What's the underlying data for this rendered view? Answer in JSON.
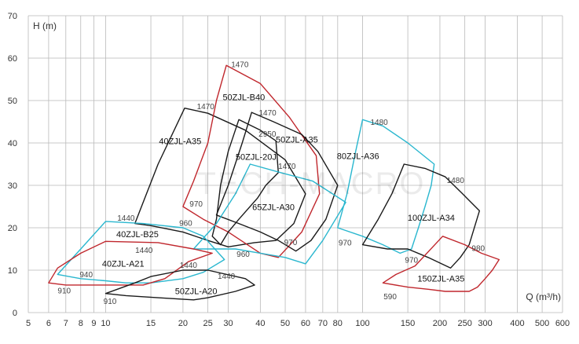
{
  "chart_data": {
    "type": "line",
    "title": "",
    "xlabel": "Q (m³/h)",
    "ylabel": "H (m)",
    "x_scale": "log",
    "xlim": [
      5,
      600
    ],
    "ylim": [
      0,
      70
    ],
    "grid": true,
    "watermark": "TECH-MACRO",
    "x_ticks": [
      5,
      6,
      7,
      8,
      9,
      10,
      15,
      20,
      25,
      30,
      40,
      50,
      60,
      70,
      80,
      100,
      150,
      200,
      250,
      300,
      400,
      500,
      600
    ],
    "y_ticks": [
      0,
      10,
      20,
      30,
      40,
      50,
      60,
      70
    ],
    "x_tick_labels": [
      "5",
      "6",
      "7",
      "8",
      "9",
      "10",
      "15",
      "20",
      "25",
      "30",
      "40",
      "50",
      "60",
      "70",
      "80",
      "100",
      "150",
      "200",
      "250",
      "300",
      "400",
      "500",
      "600"
    ],
    "y_tick_labels": [
      "0",
      "10",
      "20",
      "30",
      "40",
      "50",
      "60",
      "70"
    ],
    "colors": {
      "black": "#1a1a1a",
      "red": "#c0272d",
      "cyan": "#2ab7cf",
      "grid": "#b9b9b9"
    },
    "pumps": [
      {
        "model": "40ZJL-A35",
        "color": "black",
        "label_pos": [
          19.5,
          40.5
        ],
        "outline": [
          [
            13,
            21
          ],
          [
            16,
            35
          ],
          [
            20.3,
            48.2
          ],
          [
            25,
            47
          ],
          [
            35,
            43
          ],
          [
            50,
            36
          ],
          [
            60,
            28
          ],
          [
            54,
            21
          ],
          [
            46,
            17
          ],
          [
            38,
            16.5
          ],
          [
            30,
            15.5
          ],
          [
            25,
            17
          ],
          [
            20,
            19
          ],
          [
            15,
            20.5
          ]
        ],
        "speeds": [
          {
            "text": "1470",
            "pos": [
              24.5,
              48.7
            ]
          },
          {
            "text": "960",
            "pos": [
              20.5,
              21.2
            ]
          }
        ]
      },
      {
        "model": "50ZJL-B40",
        "color": "red",
        "label_pos": [
          34.5,
          50.8
        ],
        "outline": [
          [
            29.5,
            58.3
          ],
          [
            40,
            54
          ],
          [
            52,
            46
          ],
          [
            66,
            37
          ],
          [
            68,
            28
          ],
          [
            58,
            19
          ],
          [
            47,
            13
          ],
          [
            40,
            14
          ],
          [
            30,
            19
          ],
          [
            24,
            22
          ],
          [
            20,
            25
          ],
          [
            22,
            31
          ],
          [
            25,
            40
          ],
          [
            27,
            50
          ]
        ],
        "speeds": [
          {
            "text": "1470",
            "pos": [
              33.3,
              58.6
            ]
          },
          {
            "text": "970",
            "pos": [
              22.5,
              25.7
            ]
          }
        ]
      },
      {
        "model": "50ZJL-A35",
        "color": "black",
        "label_pos": [
          55.5,
          40.8
        ],
        "outline": [
          [
            37,
            47.2
          ],
          [
            45,
            45
          ],
          [
            58,
            42
          ],
          [
            67,
            38
          ],
          [
            80,
            30
          ],
          [
            72,
            22
          ],
          [
            63,
            17
          ],
          [
            55,
            14.5
          ],
          [
            47,
            17
          ],
          [
            40,
            19
          ],
          [
            33,
            21
          ],
          [
            27,
            23
          ],
          [
            30,
            30
          ],
          [
            34,
            40
          ]
        ],
        "speeds": [
          {
            "text": "1470",
            "pos": [
              42.7,
              47.2
            ]
          }
        ]
      },
      {
        "model": "50ZJL-20J",
        "color": "black",
        "label_pos": [
          38.5,
          36.8
        ],
        "outline": [
          [
            33,
            45.5
          ],
          [
            40,
            43
          ],
          [
            46,
            40.5
          ],
          [
            47,
            33
          ],
          [
            42,
            30
          ],
          [
            39,
            27
          ],
          [
            33,
            22
          ],
          [
            30,
            19
          ],
          [
            28,
            16
          ],
          [
            26,
            18
          ],
          [
            27,
            22
          ],
          [
            28,
            30
          ],
          [
            30,
            38
          ]
        ],
        "speeds": [
          {
            "text": "2950",
            "pos": [
              42.6,
              42.2
            ]
          }
        ]
      },
      {
        "model": "65ZJL-A30",
        "color": "cyan",
        "label_pos": [
          45,
          24.9
        ],
        "outline": [
          [
            36.5,
            35
          ],
          [
            48,
            33
          ],
          [
            64,
            31
          ],
          [
            86,
            26
          ],
          [
            70,
            17
          ],
          [
            60,
            11.5
          ],
          [
            50,
            13
          ],
          [
            40,
            14
          ],
          [
            32,
            15
          ],
          [
            22,
            15
          ],
          [
            27,
            21
          ],
          [
            32,
            28
          ]
        ],
        "speeds": [
          {
            "text": "1470",
            "pos": [
              50.8,
              34.6
            ]
          },
          {
            "text": "960",
            "pos": [
              34.3,
              13.9
            ]
          },
          {
            "text": "970",
            "pos": [
              52.5,
              16.7
            ]
          }
        ]
      },
      {
        "model": "40ZJL-B25",
        "color": "cyan",
        "label_pos": [
          13.3,
          18.5
        ],
        "outline": [
          [
            10,
            21.5
          ],
          [
            14,
            21
          ],
          [
            20,
            20
          ],
          [
            24,
            18
          ],
          [
            29,
            12.5
          ],
          [
            24,
            9.5
          ],
          [
            20,
            8
          ],
          [
            15,
            7
          ],
          [
            12,
            7
          ],
          [
            10,
            7.5
          ],
          [
            8,
            8
          ],
          [
            6.5,
            9
          ],
          [
            8,
            15
          ]
        ],
        "speeds": [
          {
            "text": "1440",
            "pos": [
              12,
              22.4
            ]
          }
        ]
      },
      {
        "model": "40ZJL-A21",
        "color": "red",
        "label_pos": [
          11.7,
          11.6
        ],
        "outline": [
          [
            10,
            16.8
          ],
          [
            16,
            16.5
          ],
          [
            22,
            15
          ],
          [
            26,
            14
          ],
          [
            21,
            12
          ],
          [
            17,
            8
          ],
          [
            14,
            6.5
          ],
          [
            10,
            6.5
          ],
          [
            7,
            6.5
          ],
          [
            6,
            7
          ],
          [
            6.5,
            10.5
          ],
          [
            8,
            14
          ]
        ],
        "speeds": [
          {
            "text": "1440",
            "pos": [
              14.1,
              14.8
            ]
          },
          {
            "text": "940",
            "pos": [
              8.4,
              9.1
            ]
          },
          {
            "text": "910",
            "pos": [
              6.9,
              5.3
            ]
          }
        ]
      },
      {
        "model": "50ZJL-A20",
        "color": "black",
        "label_pos": [
          22.5,
          5.1
        ],
        "outline": [
          [
            15,
            8.5
          ],
          [
            20,
            10
          ],
          [
            25,
            10
          ],
          [
            35,
            8
          ],
          [
            38,
            6.5
          ],
          [
            32,
            5
          ],
          [
            25,
            3.5
          ],
          [
            22,
            3
          ],
          [
            16,
            3.5
          ],
          [
            12,
            4
          ],
          [
            10,
            4.5
          ],
          [
            13,
            7
          ]
        ],
        "speeds": [
          {
            "text": "1440",
            "pos": [
              21,
              11.3
            ]
          },
          {
            "text": "1440",
            "pos": [
              29.5,
              8.7
            ]
          },
          {
            "text": "910",
            "pos": [
              10.4,
              2.8
            ]
          }
        ]
      },
      {
        "model": "80ZJL-A36",
        "color": "cyan",
        "label_pos": [
          96,
          36.9
        ],
        "outline": [
          [
            100,
            45.5
          ],
          [
            120,
            44
          ],
          [
            150,
            40
          ],
          [
            190,
            35
          ],
          [
            185,
            30
          ],
          [
            175,
            25
          ],
          [
            165,
            20
          ],
          [
            155,
            15
          ],
          [
            140,
            14
          ],
          [
            120,
            16
          ],
          [
            100,
            18
          ],
          [
            80,
            20
          ],
          [
            87,
            28
          ],
          [
            94,
            38
          ]
        ],
        "speeds": [
          {
            "text": "1480",
            "pos": [
              116,
              45
            ]
          },
          {
            "text": "970",
            "pos": [
              85.5,
              16.6
            ]
          }
        ]
      },
      {
        "model": "100ZJL-A34",
        "color": "black",
        "label_pos": [
          185,
          22.4
        ],
        "outline": [
          [
            145,
            35
          ],
          [
            175,
            34
          ],
          [
            210,
            32
          ],
          [
            245,
            28
          ],
          [
            285,
            24
          ],
          [
            260,
            16
          ],
          [
            240,
            13
          ],
          [
            220,
            10.5
          ],
          [
            180,
            13
          ],
          [
            150,
            15
          ],
          [
            125,
            15
          ],
          [
            100,
            16
          ],
          [
            115,
            22
          ],
          [
            130,
            28
          ]
        ],
        "speeds": [
          {
            "text": "1480",
            "pos": [
              230,
              31.3
            ]
          },
          {
            "text": "970",
            "pos": [
              155,
              12.5
            ]
          }
        ]
      },
      {
        "model": "150ZJL-A35",
        "color": "red",
        "label_pos": [
          202,
          8.1
        ],
        "outline": [
          [
            160,
            11
          ],
          [
            205,
            18
          ],
          [
            250,
            16
          ],
          [
            290,
            14
          ],
          [
            340,
            12.5
          ],
          [
            320,
            10
          ],
          [
            300,
            8
          ],
          [
            280,
            6
          ],
          [
            260,
            5
          ],
          [
            210,
            5
          ],
          [
            180,
            5.5
          ],
          [
            150,
            6
          ],
          [
            120,
            7
          ],
          [
            135,
            9
          ]
        ],
        "speeds": [
          {
            "text": "980",
            "pos": [
              282,
              15.3
            ]
          },
          {
            "text": "590",
            "pos": [
              128,
              3.9
            ]
          }
        ]
      }
    ]
  }
}
